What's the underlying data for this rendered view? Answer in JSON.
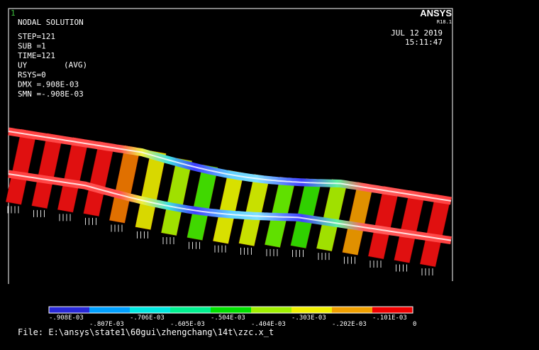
{
  "header": {
    "window_number": "1",
    "logo": "ANSYS",
    "version": "R18.1",
    "date": "JUL 12 2019",
    "time": "15:11:47"
  },
  "info": {
    "title": "NODAL SOLUTION",
    "lines": [
      "STEP=121",
      "SUB =1",
      "TIME=121",
      "UY",
      "RSYS=0",
      "DMX =.908E-03",
      "SMN =-.908E-03"
    ],
    "avg": "(AVG)"
  },
  "legend": {
    "labels": [
      "-.908E-03",
      "-.807E-03",
      "-.706E-03",
      "-.605E-03",
      "-.504E-03",
      "-.404E-03",
      "-.303E-03",
      "-.202E-03",
      "-.101E-03",
      "0"
    ],
    "colors": [
      "#2828d8",
      "#00a0ff",
      "#00e8e0",
      "#00f090",
      "#00e000",
      "#a0f000",
      "#f0f000",
      "#f0a000",
      "#f00000"
    ]
  },
  "footer": {
    "file": "File: E:\\ansys\\state1\\60gui\\zhengchang\\14t\\zzc.x_t"
  }
}
